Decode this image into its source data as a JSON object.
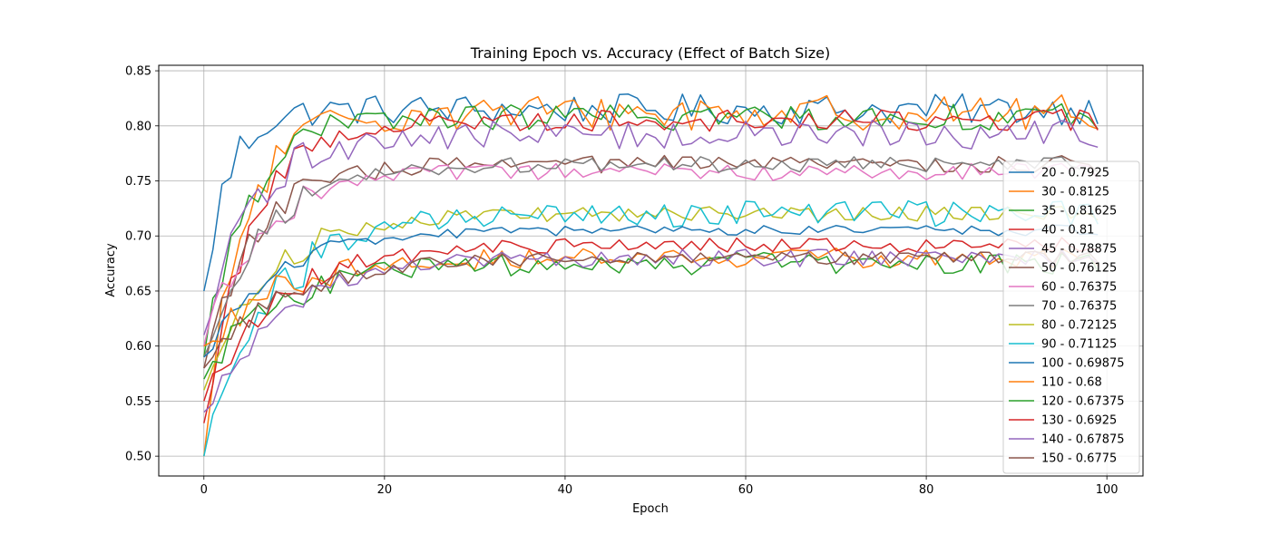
{
  "chart_data": {
    "type": "line",
    "title": "Training Epoch vs. Accuracy (Effect of Batch Size)",
    "xlabel": "Epoch",
    "ylabel": "Accuracy",
    "xlim": [
      -5,
      104
    ],
    "ylim": [
      0.482,
      0.855
    ],
    "xticks": [
      0,
      20,
      40,
      60,
      80,
      100
    ],
    "yticks": [
      0.5,
      0.55,
      0.6,
      0.65,
      0.7,
      0.75,
      0.8,
      0.85
    ],
    "xtick_labels": [
      "0",
      "20",
      "40",
      "60",
      "80",
      "100"
    ],
    "ytick_labels": [
      "0.50",
      "0.55",
      "0.60",
      "0.65",
      "0.70",
      "0.75",
      "0.80",
      "0.85"
    ],
    "grid": true,
    "legend_position": "center-right",
    "epochs": 100,
    "series": [
      {
        "name": "20 - 0.7925",
        "color": "#1f77b4",
        "start": 0.65,
        "plateau": 0.815,
        "rise": 6,
        "noise": 0.014
      },
      {
        "name": "30 - 0.8125",
        "color": "#ff7f0e",
        "start": 0.5,
        "plateau": 0.812,
        "rise": 9,
        "noise": 0.016
      },
      {
        "name": "35 - 0.81625",
        "color": "#2ca02c",
        "start": 0.59,
        "plateau": 0.808,
        "rise": 10,
        "noise": 0.012
      },
      {
        "name": "40 - 0.81",
        "color": "#d62728",
        "start": 0.53,
        "plateau": 0.805,
        "rise": 11,
        "noise": 0.01
      },
      {
        "name": "45 - 0.78875",
        "color": "#9467bd",
        "start": 0.61,
        "plateau": 0.792,
        "rise": 12,
        "noise": 0.013
      },
      {
        "name": "50 - 0.76125",
        "color": "#8c564b",
        "start": 0.58,
        "plateau": 0.765,
        "rise": 12,
        "noise": 0.008
      },
      {
        "name": "60 - 0.76375",
        "color": "#e377c2",
        "start": 0.6,
        "plateau": 0.758,
        "rise": 13,
        "noise": 0.008
      },
      {
        "name": "70 - 0.76375",
        "color": "#7f7f7f",
        "start": 0.59,
        "plateau": 0.765,
        "rise": 14,
        "noise": 0.007
      },
      {
        "name": "80 - 0.72125",
        "color": "#bcbd22",
        "start": 0.56,
        "plateau": 0.72,
        "rise": 15,
        "noise": 0.007
      },
      {
        "name": "90 - 0.71125",
        "color": "#17becf",
        "start": 0.5,
        "plateau": 0.72,
        "rise": 16,
        "noise": 0.012
      },
      {
        "name": "100 - 0.69875",
        "color": "#1f77b4",
        "start": 0.59,
        "plateau": 0.705,
        "rise": 16,
        "noise": 0.005
      },
      {
        "name": "110 - 0.68",
        "color": "#ff7f0e",
        "start": 0.6,
        "plateau": 0.68,
        "rise": 17,
        "noise": 0.009
      },
      {
        "name": "120 - 0.67375",
        "color": "#2ca02c",
        "start": 0.57,
        "plateau": 0.675,
        "rise": 17,
        "noise": 0.01
      },
      {
        "name": "130 - 0.6925",
        "color": "#d62728",
        "start": 0.55,
        "plateau": 0.692,
        "rise": 18,
        "noise": 0.007
      },
      {
        "name": "140 - 0.67875",
        "color": "#9467bd",
        "start": 0.54,
        "plateau": 0.68,
        "rise": 18,
        "noise": 0.008
      },
      {
        "name": "150 - 0.6775",
        "color": "#8c564b",
        "start": 0.58,
        "plateau": 0.68,
        "rise": 19,
        "noise": 0.006
      }
    ]
  }
}
